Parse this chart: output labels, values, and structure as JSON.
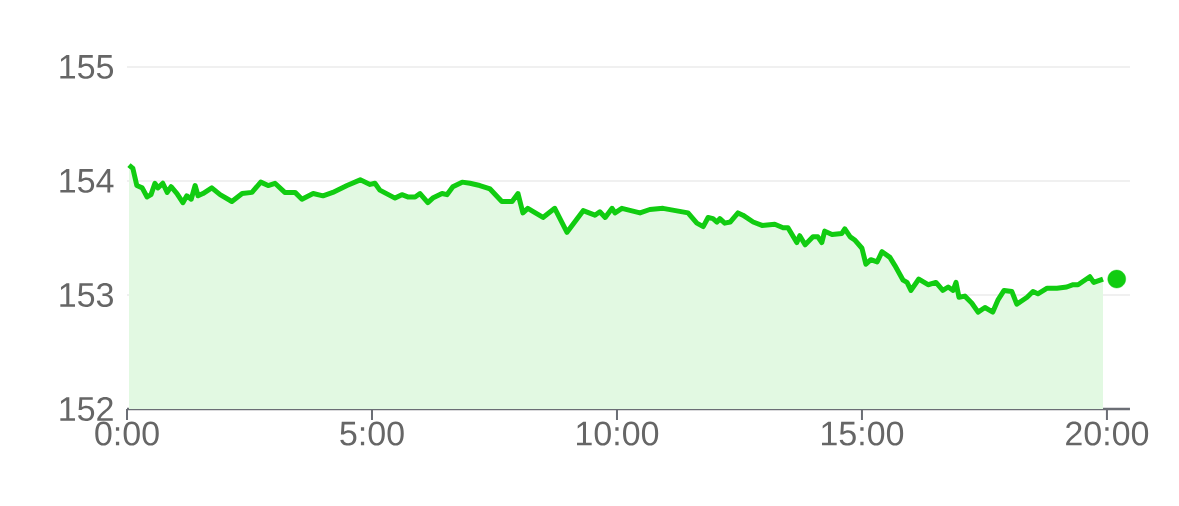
{
  "chart_data": {
    "type": "area",
    "grid": "y",
    "xlim": [
      0,
      20.47
    ],
    "ylim": [
      152,
      155
    ],
    "xticks": [
      {
        "value": 0,
        "label": "0:00"
      },
      {
        "value": 5,
        "label": "5:00"
      },
      {
        "value": 10,
        "label": "10:00"
      },
      {
        "value": 15,
        "label": "15:00"
      },
      {
        "value": 20,
        "label": "20:00"
      }
    ],
    "yticks": [
      152,
      153,
      154,
      155
    ],
    "series": [
      {
        "color": "#11cc11",
        "x": [
          0.04,
          0.12,
          0.2,
          0.31,
          0.41,
          0.49,
          0.57,
          0.63,
          0.73,
          0.82,
          0.9,
          1.02,
          1.14,
          1.22,
          1.31,
          1.39,
          1.45,
          1.55,
          1.73,
          1.9,
          2.14,
          2.35,
          2.55,
          2.73,
          2.88,
          3.02,
          3.22,
          3.43,
          3.57,
          3.8,
          4.0,
          4.2,
          4.49,
          4.76,
          4.96,
          5.06,
          5.16,
          5.47,
          5.61,
          5.73,
          5.88,
          5.98,
          6.14,
          6.24,
          6.43,
          6.53,
          6.65,
          6.84,
          7.0,
          7.2,
          7.41,
          7.65,
          7.86,
          7.98,
          8.08,
          8.18,
          8.49,
          8.73,
          8.98,
          9.31,
          9.55,
          9.65,
          9.76,
          9.9,
          9.96,
          10.1,
          10.47,
          10.67,
          10.94,
          11.45,
          11.63,
          11.76,
          11.86,
          11.96,
          12.04,
          12.1,
          12.2,
          12.31,
          12.47,
          12.57,
          12.78,
          12.96,
          13.22,
          13.39,
          13.49,
          13.67,
          13.73,
          13.84,
          14.0,
          14.1,
          14.18,
          14.24,
          14.39,
          14.59,
          14.65,
          14.76,
          14.86,
          15.0,
          15.08,
          15.18,
          15.31,
          15.41,
          15.57,
          15.67,
          15.84,
          15.92,
          16.0,
          16.16,
          16.35,
          16.51,
          16.65,
          16.76,
          16.86,
          16.92,
          16.98,
          17.1,
          17.24,
          17.37,
          17.51,
          17.67,
          17.78,
          17.9,
          18.06,
          18.16,
          18.37,
          18.49,
          18.59,
          18.78,
          18.98,
          19.18,
          19.31,
          19.41,
          19.65,
          19.73,
          19.92
        ],
        "values": [
          154.14,
          154.11,
          153.96,
          153.94,
          153.86,
          153.88,
          153.98,
          153.94,
          153.98,
          153.9,
          153.95,
          153.89,
          153.81,
          153.87,
          153.84,
          153.96,
          153.87,
          153.89,
          153.94,
          153.88,
          153.82,
          153.89,
          153.9,
          153.99,
          153.96,
          153.98,
          153.9,
          153.9,
          153.84,
          153.89,
          153.87,
          153.9,
          153.96,
          154.01,
          153.97,
          153.98,
          153.92,
          153.85,
          153.88,
          153.86,
          153.86,
          153.89,
          153.81,
          153.85,
          153.89,
          153.88,
          153.95,
          153.99,
          153.98,
          153.96,
          153.93,
          153.82,
          153.82,
          153.89,
          153.72,
          153.76,
          153.68,
          153.76,
          153.55,
          153.74,
          153.7,
          153.73,
          153.68,
          153.76,
          153.72,
          153.76,
          153.72,
          153.75,
          153.76,
          153.72,
          153.63,
          153.6,
          153.68,
          153.67,
          153.64,
          153.67,
          153.63,
          153.64,
          153.72,
          153.7,
          153.64,
          153.61,
          153.62,
          153.59,
          153.59,
          153.46,
          153.52,
          153.44,
          153.51,
          153.51,
          153.46,
          153.56,
          153.53,
          153.54,
          153.58,
          153.51,
          153.48,
          153.41,
          153.27,
          153.31,
          153.29,
          153.38,
          153.33,
          153.26,
          153.13,
          153.11,
          153.04,
          153.14,
          153.09,
          153.11,
          153.04,
          153.07,
          153.04,
          153.11,
          152.98,
          152.99,
          152.93,
          152.85,
          152.89,
          152.85,
          152.96,
          153.04,
          153.03,
          152.92,
          152.98,
          153.03,
          153.01,
          153.06,
          153.06,
          153.07,
          153.09,
          153.09,
          153.16,
          153.11,
          153.14
        ]
      },
      {
        "type": "scatter",
        "marker": "circle",
        "color": "#11cc11",
        "x": [
          20.2
        ],
        "values": [
          153.14
        ]
      }
    ]
  }
}
